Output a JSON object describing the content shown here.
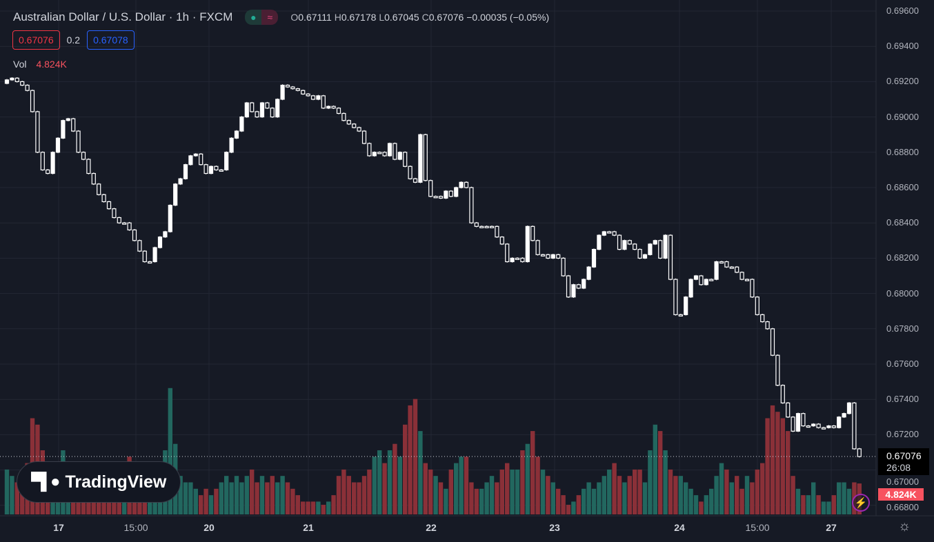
{
  "header": {
    "title": "Australian Dollar / U.S. Dollar · 1h · FXCM",
    "status_icons": [
      "market-open-dot-icon",
      "wave-icon"
    ],
    "ohlc": {
      "o_label": "O",
      "o": "0.67111",
      "h_label": "H",
      "h": "0.67178",
      "l_label": "L",
      "l": "0.67045",
      "c_label": "C",
      "c": "0.67076",
      "change": "−0.00035 (−0.05%)"
    },
    "sell_price": "0.67076",
    "spread": "0.2",
    "buy_price": "0.67078",
    "vol_label": "Vol",
    "vol_value": "4.824K"
  },
  "logo": {
    "text": "TradingView"
  },
  "price_axis": {
    "labels": [
      "0.69600",
      "0.69400",
      "0.69200",
      "0.69000",
      "0.68800",
      "0.68600",
      "0.68400",
      "0.68200",
      "0.68000",
      "0.67800",
      "0.67600",
      "0.67400",
      "0.67200",
      "0.67000",
      "0.66800"
    ],
    "current_price": "0.67076",
    "countdown": "26:08",
    "volume_tag": "4.824K"
  },
  "time_axis": {
    "labels": [
      {
        "text": "17",
        "day": true
      },
      {
        "text": "15:00",
        "day": false
      },
      {
        "text": "20",
        "day": true
      },
      {
        "text": "21",
        "day": true
      },
      {
        "text": "22",
        "day": true
      },
      {
        "text": "23",
        "day": true
      },
      {
        "text": "24",
        "day": true
      },
      {
        "text": "15:00",
        "day": false
      },
      {
        "text": "27",
        "day": true
      }
    ]
  },
  "colors": {
    "bg": "#161a25",
    "grid": "#232734",
    "candle": "#ffffff",
    "vol_up": "#22675f",
    "vol_down": "#8a3038",
    "accent_sell": "#f23645",
    "accent_buy": "#2962ff"
  },
  "chart_data": {
    "type": "candlestick",
    "symbol": "AUDUSD",
    "interval": "1h",
    "ylim": [
      0.668,
      0.696
    ],
    "open_first": 0.6919,
    "close": [
      0.6921,
      0.6922,
      0.692,
      0.6918,
      0.6915,
      0.6903,
      0.688,
      0.687,
      0.6868,
      0.688,
      0.6888,
      0.6898,
      0.6899,
      0.6892,
      0.688,
      0.6876,
      0.6868,
      0.6862,
      0.6856,
      0.6852,
      0.6848,
      0.6843,
      0.684,
      0.684,
      0.6836,
      0.683,
      0.6824,
      0.6818,
      0.6818,
      0.6826,
      0.6832,
      0.6835,
      0.685,
      0.6862,
      0.6865,
      0.6873,
      0.6878,
      0.6879,
      0.6873,
      0.6868,
      0.6872,
      0.687,
      0.687,
      0.688,
      0.6888,
      0.6892,
      0.69,
      0.6908,
      0.6903,
      0.69,
      0.6908,
      0.6905,
      0.69,
      0.691,
      0.6918,
      0.6917,
      0.6916,
      0.6915,
      0.6913,
      0.6912,
      0.691,
      0.6912,
      0.6905,
      0.6906,
      0.6905,
      0.6902,
      0.6898,
      0.6896,
      0.6894,
      0.6892,
      0.6885,
      0.6878,
      0.688,
      0.688,
      0.6878,
      0.6885,
      0.6876,
      0.688,
      0.6872,
      0.6865,
      0.6863,
      0.689,
      0.6864,
      0.6855,
      0.6855,
      0.6854,
      0.6858,
      0.6855,
      0.686,
      0.6863,
      0.686,
      0.684,
      0.6838,
      0.6838,
      0.6838,
      0.6838,
      0.6832,
      0.6828,
      0.6818,
      0.682,
      0.682,
      0.6818,
      0.6838,
      0.683,
      0.6822,
      0.6822,
      0.682,
      0.6822,
      0.682,
      0.681,
      0.6798,
      0.6805,
      0.6803,
      0.6808,
      0.6815,
      0.6825,
      0.6833,
      0.6835,
      0.6835,
      0.6833,
      0.6825,
      0.683,
      0.6828,
      0.6825,
      0.682,
      0.6822,
      0.6828,
      0.683,
      0.682,
      0.6833,
      0.6808,
      0.6788,
      0.6788,
      0.6798,
      0.6808,
      0.681,
      0.6805,
      0.6808,
      0.6808,
      0.6818,
      0.6818,
      0.6815,
      0.6815,
      0.6812,
      0.6808,
      0.6808,
      0.6798,
      0.6788,
      0.6784,
      0.678,
      0.6765,
      0.6748,
      0.6738,
      0.673,
      0.6722,
      0.6732,
      0.6725,
      0.6725,
      0.6726,
      0.6724,
      0.6724,
      0.6725,
      0.6724,
      0.673,
      0.6732,
      0.6738,
      0.6712,
      0.67076
    ],
    "volume_k": [
      7,
      6,
      5,
      6,
      8,
      15,
      14,
      10,
      8,
      7,
      7,
      10,
      6,
      5,
      4,
      3,
      4,
      5,
      6,
      5,
      5,
      5,
      7,
      8,
      9,
      6,
      5,
      5,
      6,
      8,
      8,
      10,
      19.7,
      11,
      6,
      5,
      5,
      4,
      3,
      4,
      3,
      4,
      5,
      6,
      5,
      6,
      5,
      6,
      7,
      5,
      6,
      5,
      6,
      5,
      6,
      5,
      4,
      3,
      2,
      2,
      2,
      2,
      1.5,
      2,
      3,
      6,
      7,
      6,
      5,
      5,
      6,
      7,
      9,
      10,
      8,
      10,
      11,
      9,
      14,
      17,
      18,
      13,
      8,
      7,
      6,
      5,
      4,
      7,
      8,
      9,
      9,
      5,
      4,
      4,
      5,
      6,
      5,
      7,
      8,
      7,
      7,
      10,
      11,
      13,
      9,
      7,
      6,
      5,
      4,
      3,
      1.5,
      2,
      3,
      4,
      5,
      4,
      5,
      6,
      7,
      8,
      6,
      5,
      6,
      7,
      7,
      5,
      10,
      14,
      13,
      10,
      7,
      6,
      6,
      5,
      4,
      3,
      2,
      3,
      4,
      6,
      8,
      7,
      5,
      6,
      4,
      6,
      5,
      7,
      8,
      15,
      17,
      16,
      15,
      13,
      6,
      4,
      3,
      3,
      5,
      3,
      2,
      2,
      3,
      5,
      5,
      4,
      5,
      4.824
    ]
  }
}
